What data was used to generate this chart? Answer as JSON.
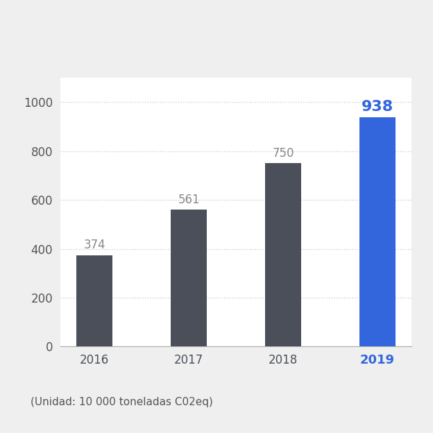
{
  "years": [
    "2016",
    "2017",
    "2018",
    "2019"
  ],
  "values": [
    374,
    561,
    750,
    938
  ],
  "bar_colors": [
    "#4a4f5a",
    "#4a4f5a",
    "#4a4f5a",
    "#3366dd"
  ],
  "label_colors": [
    "#888888",
    "#888888",
    "#888888",
    "#3366dd"
  ],
  "xtick_colors": [
    "#4a4f5a",
    "#4a4f5a",
    "#4a4f5a",
    "#3366dd"
  ],
  "background_color": "#efefef",
  "plot_bg_color": "#ffffff",
  "ylim": [
    0,
    1100
  ],
  "yticks": [
    0,
    200,
    400,
    600,
    800,
    1000
  ],
  "grid_color": "#cccccc",
  "footnote": "(Unidad: 10 000 toneladas C02eq)",
  "footnote_color": "#555555",
  "value_fontsize": 12,
  "axis_fontsize": 12,
  "footnote_fontsize": 11,
  "bar_width": 0.38
}
